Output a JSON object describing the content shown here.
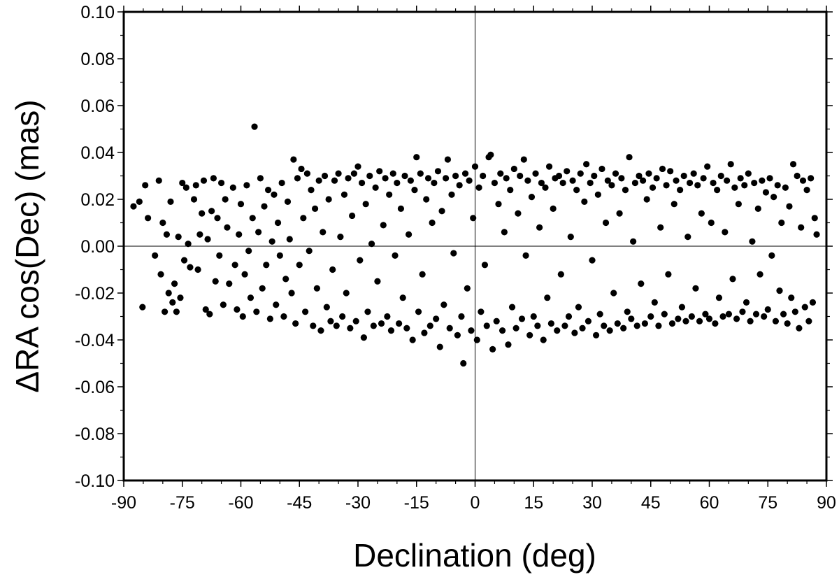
{
  "chart_data": {
    "type": "scatter",
    "title": "",
    "xlabel": "Declination (deg)",
    "ylabel": "ΔRA cos(Dec) (mas)",
    "xlim": [
      -90,
      90
    ],
    "ylim": [
      -0.1,
      0.1
    ],
    "x_ticks": [
      -90,
      -75,
      -60,
      -45,
      -30,
      -15,
      0,
      15,
      30,
      45,
      60,
      75,
      90
    ],
    "x_tick_labels": [
      "-90",
      "-75",
      "-60",
      "-45",
      "-30",
      "-15",
      "0",
      "15",
      "30",
      "45",
      "60",
      "75",
      "90"
    ],
    "y_ticks": [
      0.1,
      0.08,
      0.06,
      0.04,
      0.02,
      0.0,
      -0.02,
      -0.04,
      -0.06,
      -0.08,
      -0.1
    ],
    "y_tick_labels": [
      "0.10",
      "0.08",
      "0.06",
      "0.04",
      "0.02",
      "0.00",
      "-0.02",
      "-0.04",
      "-0.06",
      "-0.08",
      "-0.10"
    ],
    "zero_lines": true,
    "grid": false,
    "marker_color": "#000000",
    "points": [
      [
        -87.5,
        0.017
      ],
      [
        -86.0,
        0.019
      ],
      [
        -85.2,
        -0.026
      ],
      [
        -84.5,
        0.026
      ],
      [
        -83.8,
        0.012
      ],
      [
        -82.0,
        -0.004
      ],
      [
        -81.0,
        0.028
      ],
      [
        -80.5,
        -0.012
      ],
      [
        -80.0,
        0.01
      ],
      [
        -79.5,
        -0.028
      ],
      [
        -79.0,
        0.005
      ],
      [
        -78.5,
        -0.02
      ],
      [
        -78.0,
        0.019
      ],
      [
        -77.5,
        -0.024
      ],
      [
        -77.0,
        -0.016
      ],
      [
        -76.5,
        -0.028
      ],
      [
        -76.0,
        0.004
      ],
      [
        -75.5,
        -0.022
      ],
      [
        -75.0,
        0.027
      ],
      [
        -74.5,
        -0.006
      ],
      [
        -74.0,
        0.025
      ],
      [
        -73.5,
        0.001
      ],
      [
        -73.0,
        -0.009
      ],
      [
        -72.0,
        0.02
      ],
      [
        -71.5,
        0.026
      ],
      [
        -71.0,
        -0.01
      ],
      [
        -70.5,
        0.005
      ],
      [
        -70.0,
        0.014
      ],
      [
        -69.5,
        0.028
      ],
      [
        -69.0,
        -0.027
      ],
      [
        -68.5,
        0.003
      ],
      [
        -68.0,
        -0.029
      ],
      [
        -67.5,
        0.015
      ],
      [
        -67.0,
        0.029
      ],
      [
        -66.5,
        -0.015
      ],
      [
        -66.0,
        0.012
      ],
      [
        -65.5,
        -0.004
      ],
      [
        -65.0,
        0.027
      ],
      [
        -64.5,
        -0.025
      ],
      [
        -64.0,
        0.02
      ],
      [
        -63.5,
        0.008
      ],
      [
        -63.0,
        -0.016
      ],
      [
        -62.0,
        0.025
      ],
      [
        -61.5,
        -0.008
      ],
      [
        -61.0,
        -0.027
      ],
      [
        -60.5,
        0.005
      ],
      [
        -60.0,
        0.018
      ],
      [
        -59.5,
        -0.03
      ],
      [
        -59.0,
        -0.012
      ],
      [
        -58.5,
        0.026
      ],
      [
        -58.0,
        -0.002
      ],
      [
        -57.5,
        -0.022
      ],
      [
        -57.0,
        0.012
      ],
      [
        -56.5,
        0.051
      ],
      [
        -56.0,
        -0.028
      ],
      [
        -55.5,
        0.006
      ],
      [
        -55.0,
        0.029
      ],
      [
        -54.5,
        -0.018
      ],
      [
        -54.0,
        0.017
      ],
      [
        -53.5,
        -0.008
      ],
      [
        -53.0,
        0.024
      ],
      [
        -52.5,
        -0.031
      ],
      [
        -52.0,
        0.002
      ],
      [
        -51.5,
        0.022
      ],
      [
        -51.0,
        -0.025
      ],
      [
        -50.5,
        0.01
      ],
      [
        -50.0,
        -0.004
      ],
      [
        -49.5,
        0.027
      ],
      [
        -49.0,
        -0.03
      ],
      [
        -48.5,
        -0.014
      ],
      [
        -48.0,
        0.019
      ],
      [
        -47.5,
        0.003
      ],
      [
        -47.0,
        -0.02
      ],
      [
        -46.5,
        0.037
      ],
      [
        -46.0,
        -0.033
      ],
      [
        -45.5,
        0.029
      ],
      [
        -45.0,
        -0.008
      ],
      [
        -44.5,
        0.033
      ],
      [
        -44.0,
        0.012
      ],
      [
        -43.5,
        -0.028
      ],
      [
        -43.0,
        0.031
      ],
      [
        -42.5,
        -0.002
      ],
      [
        -42.0,
        0.024
      ],
      [
        -41.5,
        -0.034
      ],
      [
        -41.0,
        0.016
      ],
      [
        -40.5,
        -0.018
      ],
      [
        -40.0,
        0.028
      ],
      [
        -39.5,
        -0.036
      ],
      [
        -39.0,
        0.006
      ],
      [
        -38.5,
        0.03
      ],
      [
        -38.0,
        -0.026
      ],
      [
        -37.5,
        0.02
      ],
      [
        -37.0,
        -0.032
      ],
      [
        -36.5,
        -0.01
      ],
      [
        -36.0,
        0.028
      ],
      [
        -35.5,
        -0.034
      ],
      [
        -35.0,
        0.031
      ],
      [
        -34.5,
        0.004
      ],
      [
        -34.0,
        -0.03
      ],
      [
        -33.5,
        0.022
      ],
      [
        -33.0,
        -0.02
      ],
      [
        -32.5,
        0.029
      ],
      [
        -32.0,
        -0.035
      ],
      [
        -31.5,
        0.013
      ],
      [
        -31.0,
        0.031
      ],
      [
        -30.5,
        -0.032
      ],
      [
        -30.0,
        0.034
      ],
      [
        -29.5,
        -0.006
      ],
      [
        -29.0,
        0.027
      ],
      [
        -28.5,
        -0.039
      ],
      [
        -28.0,
        0.018
      ],
      [
        -27.5,
        -0.028
      ],
      [
        -27.0,
        0.03
      ],
      [
        -26.5,
        0.001
      ],
      [
        -26.0,
        -0.034
      ],
      [
        -25.5,
        0.025
      ],
      [
        -25.0,
        -0.015
      ],
      [
        -24.5,
        0.032
      ],
      [
        -24.0,
        -0.033
      ],
      [
        -23.5,
        0.009
      ],
      [
        -23.0,
        0.029
      ],
      [
        -22.5,
        -0.03
      ],
      [
        -22.0,
        0.022
      ],
      [
        -21.5,
        -0.036
      ],
      [
        -21.0,
        0.031
      ],
      [
        -20.5,
        -0.004
      ],
      [
        -20.0,
        0.027
      ],
      [
        -19.5,
        -0.033
      ],
      [
        -19.0,
        0.016
      ],
      [
        -18.5,
        -0.022
      ],
      [
        -18.0,
        0.03
      ],
      [
        -17.5,
        -0.035
      ],
      [
        -17.0,
        0.005
      ],
      [
        -16.5,
        0.028
      ],
      [
        -16.0,
        -0.04
      ],
      [
        -15.5,
        0.024
      ],
      [
        -15.0,
        0.038
      ],
      [
        -14.5,
        -0.028
      ],
      [
        -14.0,
        0.031
      ],
      [
        -13.5,
        -0.012
      ],
      [
        -13.0,
        -0.037
      ],
      [
        -12.5,
        0.02
      ],
      [
        -12.0,
        0.029
      ],
      [
        -11.5,
        -0.034
      ],
      [
        -11.0,
        0.01
      ],
      [
        -10.5,
        0.027
      ],
      [
        -10.0,
        -0.031
      ],
      [
        -9.5,
        0.032
      ],
      [
        -9.0,
        -0.043
      ],
      [
        -8.5,
        0.015
      ],
      [
        -8.0,
        -0.025
      ],
      [
        -7.5,
        0.029
      ],
      [
        -7.0,
        0.037
      ],
      [
        -6.5,
        -0.035
      ],
      [
        -6.0,
        0.022
      ],
      [
        -5.5,
        -0.003
      ],
      [
        -5.0,
        0.03
      ],
      [
        -4.5,
        -0.038
      ],
      [
        -4.0,
        0.026
      ],
      [
        -3.5,
        -0.03
      ],
      [
        -3.0,
        -0.05
      ],
      [
        -2.5,
        0.031
      ],
      [
        -2.0,
        -0.018
      ],
      [
        -1.5,
        0.028
      ],
      [
        -1.0,
        -0.036
      ],
      [
        -0.5,
        0.012
      ],
      [
        0.0,
        0.034
      ],
      [
        0.5,
        -0.04
      ],
      [
        1.0,
        0.025
      ],
      [
        1.5,
        -0.028
      ],
      [
        2.0,
        0.03
      ],
      [
        2.5,
        -0.008
      ],
      [
        3.0,
        -0.034
      ],
      [
        3.5,
        0.038
      ],
      [
        4.0,
        0.039
      ],
      [
        4.5,
        -0.044
      ],
      [
        5.0,
        0.027
      ],
      [
        5.5,
        -0.032
      ],
      [
        6.0,
        0.018
      ],
      [
        6.5,
        0.031
      ],
      [
        7.0,
        -0.036
      ],
      [
        7.5,
        0.006
      ],
      [
        8.0,
        0.029
      ],
      [
        8.5,
        -0.042
      ],
      [
        9.0,
        0.024
      ],
      [
        9.5,
        -0.026
      ],
      [
        10.0,
        0.033
      ],
      [
        10.5,
        -0.035
      ],
      [
        11.0,
        0.014
      ],
      [
        11.5,
        0.03
      ],
      [
        12.0,
        -0.031
      ],
      [
        12.5,
        0.037
      ],
      [
        13.0,
        -0.004
      ],
      [
        13.5,
        0.028
      ],
      [
        14.0,
        -0.038
      ],
      [
        14.5,
        0.021
      ],
      [
        15.0,
        -0.03
      ],
      [
        15.5,
        0.031
      ],
      [
        16.0,
        -0.034
      ],
      [
        16.5,
        0.008
      ],
      [
        17.0,
        0.027
      ],
      [
        17.5,
        -0.04
      ],
      [
        18.0,
        0.025
      ],
      [
        18.5,
        -0.022
      ],
      [
        19.0,
        0.034
      ],
      [
        19.5,
        -0.033
      ],
      [
        20.0,
        0.016
      ],
      [
        20.5,
        0.029
      ],
      [
        21.0,
        -0.036
      ],
      [
        21.5,
        0.03
      ],
      [
        22.0,
        -0.012
      ],
      [
        22.5,
        0.027
      ],
      [
        23.0,
        -0.034
      ],
      [
        23.5,
        0.032
      ],
      [
        24.0,
        -0.03
      ],
      [
        24.5,
        0.004
      ],
      [
        25.0,
        0.028
      ],
      [
        25.5,
        -0.037
      ],
      [
        26.0,
        0.024
      ],
      [
        26.5,
        -0.026
      ],
      [
        27.0,
        0.031
      ],
      [
        27.5,
        -0.035
      ],
      [
        28.0,
        0.019
      ],
      [
        28.5,
        0.035
      ],
      [
        29.0,
        -0.032
      ],
      [
        29.5,
        0.027
      ],
      [
        30.0,
        -0.006
      ],
      [
        30.5,
        0.03
      ],
      [
        31.0,
        -0.038
      ],
      [
        31.5,
        0.022
      ],
      [
        32.0,
        -0.029
      ],
      [
        32.5,
        0.033
      ],
      [
        33.0,
        -0.034
      ],
      [
        33.5,
        0.01
      ],
      [
        34.0,
        0.028
      ],
      [
        34.5,
        -0.036
      ],
      [
        35.0,
        0.026
      ],
      [
        35.5,
        -0.02
      ],
      [
        36.0,
        0.031
      ],
      [
        36.5,
        -0.033
      ],
      [
        37.0,
        0.014
      ],
      [
        37.5,
        0.029
      ],
      [
        38.0,
        -0.035
      ],
      [
        38.5,
        0.024
      ],
      [
        39.0,
        -0.028
      ],
      [
        39.5,
        0.038
      ],
      [
        40.0,
        -0.031
      ],
      [
        40.5,
        0.002
      ],
      [
        41.0,
        0.027
      ],
      [
        41.5,
        -0.034
      ],
      [
        42.0,
        0.03
      ],
      [
        42.5,
        -0.016
      ],
      [
        43.0,
        0.028
      ],
      [
        43.5,
        -0.033
      ],
      [
        44.0,
        0.02
      ],
      [
        44.5,
        0.031
      ],
      [
        45.0,
        -0.03
      ],
      [
        45.5,
        0.025
      ],
      [
        46.0,
        -0.024
      ],
      [
        46.5,
        0.029
      ],
      [
        47.0,
        -0.034
      ],
      [
        47.5,
        0.008
      ],
      [
        48.0,
        0.033
      ],
      [
        48.5,
        -0.029
      ],
      [
        49.0,
        0.026
      ],
      [
        49.5,
        -0.012
      ],
      [
        50.0,
        0.032
      ],
      [
        50.5,
        -0.033
      ],
      [
        51.0,
        0.018
      ],
      [
        51.5,
        0.028
      ],
      [
        52.0,
        -0.031
      ],
      [
        52.5,
        0.024
      ],
      [
        53.0,
        -0.026
      ],
      [
        53.5,
        0.03
      ],
      [
        54.0,
        -0.032
      ],
      [
        54.5,
        0.004
      ],
      [
        55.0,
        0.027
      ],
      [
        55.5,
        -0.03
      ],
      [
        56.0,
        0.031
      ],
      [
        56.5,
        -0.018
      ],
      [
        57.0,
        0.026
      ],
      [
        57.5,
        -0.032
      ],
      [
        58.0,
        0.014
      ],
      [
        58.5,
        0.029
      ],
      [
        59.0,
        -0.029
      ],
      [
        59.5,
        0.034
      ],
      [
        60.0,
        -0.031
      ],
      [
        60.5,
        0.01
      ],
      [
        61.0,
        0.027
      ],
      [
        61.5,
        -0.033
      ],
      [
        62.0,
        0.024
      ],
      [
        62.5,
        -0.022
      ],
      [
        63.0,
        0.03
      ],
      [
        63.5,
        -0.03
      ],
      [
        64.0,
        0.006
      ],
      [
        64.5,
        0.028
      ],
      [
        65.0,
        -0.029
      ],
      [
        65.5,
        0.035
      ],
      [
        66.0,
        -0.014
      ],
      [
        66.5,
        0.025
      ],
      [
        67.0,
        -0.031
      ],
      [
        67.5,
        0.018
      ],
      [
        68.0,
        0.029
      ],
      [
        68.5,
        -0.028
      ],
      [
        69.0,
        0.026
      ],
      [
        69.5,
        -0.024
      ],
      [
        70.0,
        0.031
      ],
      [
        70.5,
        -0.032
      ],
      [
        71.0,
        0.002
      ],
      [
        71.5,
        0.027
      ],
      [
        72.0,
        -0.029
      ],
      [
        72.5,
        0.016
      ],
      [
        73.0,
        -0.012
      ],
      [
        73.5,
        0.028
      ],
      [
        74.0,
        -0.03
      ],
      [
        74.5,
        0.023
      ],
      [
        75.0,
        -0.027
      ],
      [
        75.5,
        0.029
      ],
      [
        76.0,
        -0.004
      ],
      [
        76.5,
        0.021
      ],
      [
        77.0,
        -0.032
      ],
      [
        77.5,
        0.026
      ],
      [
        78.0,
        -0.019
      ],
      [
        78.5,
        0.01
      ],
      [
        79.0,
        -0.029
      ],
      [
        79.5,
        0.025
      ],
      [
        80.0,
        -0.033
      ],
      [
        80.5,
        0.017
      ],
      [
        81.0,
        -0.022
      ],
      [
        81.5,
        0.035
      ],
      [
        82.0,
        -0.028
      ],
      [
        82.5,
        0.03
      ],
      [
        83.0,
        -0.035
      ],
      [
        83.5,
        0.008
      ],
      [
        84.0,
        0.028
      ],
      [
        84.5,
        -0.026
      ],
      [
        85.0,
        0.024
      ],
      [
        85.5,
        -0.032
      ],
      [
        86.0,
        0.029
      ],
      [
        86.5,
        -0.024
      ],
      [
        87.0,
        0.012
      ],
      [
        87.5,
        0.005
      ]
    ]
  }
}
